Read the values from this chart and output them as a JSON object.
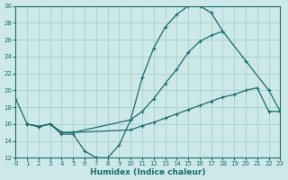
{
  "xlabel": "Humidex (Indice chaleur)",
  "bg_color": "#cce8e8",
  "grid_color": "#aad4d4",
  "line_color": "#1a6b6b",
  "xlim": [
    0,
    23
  ],
  "ylim": [
    12,
    30
  ],
  "xticks": [
    0,
    1,
    2,
    3,
    4,
    5,
    6,
    7,
    8,
    9,
    10,
    11,
    12,
    13,
    14,
    15,
    16,
    17,
    18,
    19,
    20,
    21,
    22,
    23
  ],
  "yticks": [
    12,
    14,
    16,
    18,
    20,
    22,
    24,
    26,
    28,
    30
  ],
  "series": [
    {
      "x": [
        0,
        1,
        2,
        3,
        4,
        5,
        6,
        7,
        8,
        9,
        10,
        11,
        12,
        13,
        14,
        15,
        16,
        17,
        18
      ],
      "y": [
        19,
        16,
        15.7,
        16,
        14.8,
        14.8,
        12.8,
        12.0,
        12.0,
        13.5,
        16.5,
        21.5,
        25.0,
        27.5,
        29.0,
        30.0,
        30.0,
        29.2,
        27.0
      ]
    },
    {
      "x": [
        1,
        2,
        3,
        4,
        5,
        10,
        11,
        12,
        13,
        14,
        15,
        16,
        17,
        18,
        20,
        22,
        23
      ],
      "y": [
        16,
        15.7,
        16,
        15,
        15,
        16.5,
        17.5,
        19.0,
        20.8,
        22.5,
        24.5,
        25.8,
        26.5,
        27.0,
        23.5,
        20.0,
        17.5
      ]
    },
    {
      "x": [
        1,
        2,
        3,
        4,
        5,
        10,
        11,
        12,
        13,
        14,
        15,
        16,
        17,
        18,
        19,
        20,
        21,
        22,
        23
      ],
      "y": [
        16,
        15.7,
        16,
        15,
        15,
        15.3,
        15.8,
        16.2,
        16.7,
        17.2,
        17.7,
        18.2,
        18.7,
        19.2,
        19.5,
        20.0,
        20.3,
        17.5,
        17.5
      ]
    }
  ]
}
